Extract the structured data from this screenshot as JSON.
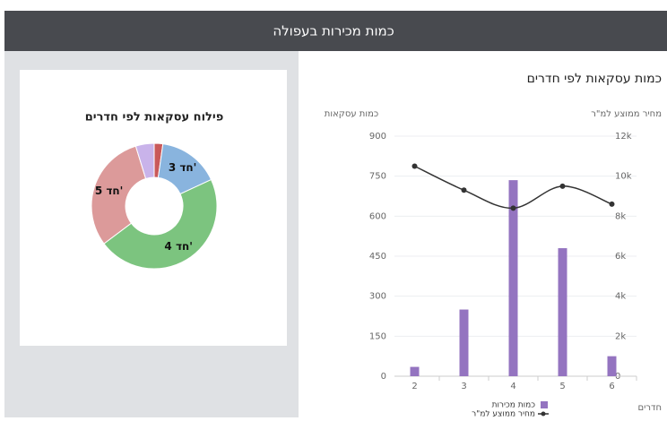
{
  "header": {
    "title": "כמות מכירות בעפולה"
  },
  "chart_data": [
    {
      "type": "pie",
      "title": "פילוח עסקאות לפי חדרים",
      "categories": [
        null,
        "3 חד'",
        "4 חד'",
        "5 חד'",
        null
      ],
      "values": [
        35,
        250,
        735,
        480,
        75
      ],
      "colors": [
        "#c9595a",
        "#89b4de",
        "#7cc47f",
        "#dc9a9a",
        "#c9b3ea"
      ]
    },
    {
      "type": "combo",
      "title": "כמות עסקאות לפי חדרים",
      "ylabel": "כמות עסקאות",
      "y2label": "מחיר ממוצע למ\"ר",
      "xlabel": "חדרים",
      "categories": [
        "2",
        "3",
        "4",
        "5",
        "6"
      ],
      "series": [
        {
          "name": "כמות מכירות",
          "type": "bar",
          "color": "#9474c0",
          "values": [
            35,
            250,
            735,
            480,
            75
          ]
        },
        {
          "name": "מחיר ממוצע למ\"ר",
          "type": "line",
          "axis": "y2",
          "color": "#333333",
          "values": [
            10500,
            9300,
            8400,
            9500,
            8600
          ]
        }
      ],
      "ylim": [
        0,
        900
      ],
      "yticks": [
        0,
        150,
        300,
        450,
        600,
        750,
        900
      ],
      "y2lim": [
        0,
        12000
      ],
      "y2ticks": [
        {
          "value": 0,
          "label": "0"
        },
        {
          "value": 2000,
          "label": "2k"
        },
        {
          "value": 4000,
          "label": "4k"
        },
        {
          "value": 6000,
          "label": "6k"
        },
        {
          "value": 8000,
          "label": "8k"
        },
        {
          "value": 10000,
          "label": "10k"
        },
        {
          "value": 12000,
          "label": "12k"
        }
      ],
      "grid": true
    }
  ]
}
